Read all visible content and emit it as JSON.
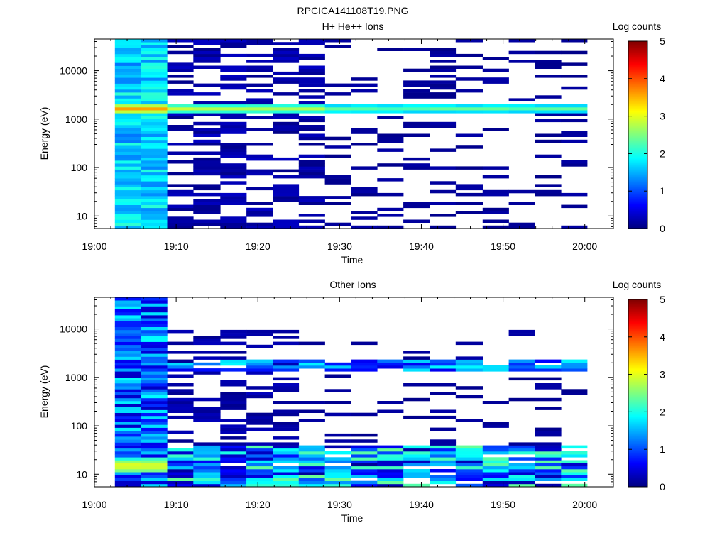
{
  "figure_title": "RPCICA141108T19.PNG",
  "colors": {
    "colormap": [
      "#00007f",
      "#0000ff",
      "#007fff",
      "#00ffff",
      "#7fff7f",
      "#ffff00",
      "#ff7f00",
      "#ff0000",
      "#7f0000"
    ],
    "background": "#ffffff"
  },
  "chart_data": [
    {
      "type": "heatmap",
      "title": "H+ He++ Ions",
      "xlabel": "Time",
      "ylabel": "Energy (eV)",
      "x_ticks": [
        "19:00",
        "19:10",
        "19:20",
        "19:30",
        "19:40",
        "19:50",
        "20:00"
      ],
      "x_tick_minutes": [
        0,
        10,
        20,
        30,
        40,
        50,
        60
      ],
      "xlim_minutes": [
        0,
        63.5
      ],
      "y_scale": "log",
      "ylim": [
        5.5,
        45000
      ],
      "y_ticks": [
        10,
        100,
        1000,
        10000
      ],
      "y_tick_labels": [
        "10",
        "100",
        "1000",
        "10000"
      ],
      "colorbar": {
        "label": "Log counts",
        "ticks": [
          "0",
          "1",
          "2",
          "3",
          "4",
          "5"
        ],
        "range": [
          0,
          5
        ]
      },
      "column_time_edges_minutes": [
        2.5,
        5.7,
        8.9,
        12.1,
        15.4,
        18.6,
        21.8,
        25.0,
        28.2,
        31.4,
        34.6,
        37.8,
        41.0,
        44.2,
        47.5,
        50.7,
        53.9,
        57.1,
        60.3
      ],
      "sweep": [
        {
          "cols": [
            0,
            1
          ],
          "emin": 5.5,
          "emax": 45000,
          "lo": 1.2,
          "hi": 2.1,
          "peak": {
            "e": 1650,
            "w": 0.1,
            "v": 3.5
          }
        },
        {
          "cols": [
            2,
            3,
            4,
            5,
            6,
            7
          ],
          "emin": 5.5,
          "emax": 45000,
          "lo": 0.05,
          "hi": 0.35,
          "fill": 0.48,
          "peak": {
            "e": 1650,
            "w": 0.08,
            "v": 2.7
          }
        },
        {
          "cols": [
            8,
            9,
            10,
            11,
            12,
            13,
            14,
            15,
            16,
            17
          ],
          "emin": 5.5,
          "emax": 45000,
          "lo": 0.05,
          "hi": 0.2,
          "fill": 0.22,
          "peak": {
            "e": 1650,
            "w": 0.09,
            "v": 2.2
          }
        }
      ]
    },
    {
      "type": "heatmap",
      "title": "Other Ions",
      "xlabel": "Time",
      "ylabel": "Energy (eV)",
      "x_ticks": [
        "19:00",
        "19:10",
        "19:20",
        "19:30",
        "19:40",
        "19:50",
        "20:00"
      ],
      "x_tick_minutes": [
        0,
        10,
        20,
        30,
        40,
        50,
        60
      ],
      "xlim_minutes": [
        0,
        63.5
      ],
      "y_scale": "log",
      "ylim": [
        5.5,
        45000
      ],
      "y_ticks": [
        10,
        100,
        1000,
        10000
      ],
      "y_tick_labels": [
        "10",
        "100",
        "1000",
        "10000"
      ],
      "colorbar": {
        "label": "Log counts",
        "ticks": [
          "0",
          "1",
          "2",
          "3",
          "4",
          "5"
        ],
        "range": [
          0,
          5
        ]
      },
      "column_time_edges_minutes": [
        2.5,
        5.7,
        8.9,
        12.1,
        15.4,
        18.6,
        21.8,
        25.0,
        28.2,
        31.4,
        34.6,
        37.8,
        41.0,
        44.2,
        47.5,
        50.7,
        53.9,
        57.1,
        60.3
      ],
      "sweep": [
        {
          "cols": [
            0,
            1
          ],
          "emin": 5.5,
          "emax": 45000,
          "lo": 0.3,
          "hi": 1.9,
          "peak": {
            "e": 15,
            "w": 0.15,
            "v": 3.0
          }
        },
        {
          "cols": [
            2,
            3,
            4,
            5,
            6,
            7,
            8,
            9,
            10,
            11,
            12,
            13,
            14,
            15,
            16,
            17
          ],
          "emin": 5.5,
          "emax": 40,
          "lo": 0.1,
          "hi": 2.4,
          "fill": 0.9
        },
        {
          "cols": [
            2,
            3,
            4,
            5,
            6
          ],
          "emin": 40,
          "emax": 9000,
          "lo": 0.05,
          "hi": 0.3,
          "fill": 0.45
        },
        {
          "cols": [
            7,
            8,
            9,
            10,
            11,
            12,
            13,
            14,
            15,
            16,
            17
          ],
          "emin": 40,
          "emax": 9000,
          "lo": 0.05,
          "hi": 0.2,
          "fill": 0.13
        },
        {
          "cols": [
            2,
            3,
            4,
            5,
            6,
            7,
            8,
            9,
            10,
            11,
            12,
            13,
            14,
            15,
            16,
            17
          ],
          "emin": 1400,
          "emax": 2200,
          "lo": 0.5,
          "hi": 1.9,
          "fill": 0.75
        }
      ]
    }
  ]
}
